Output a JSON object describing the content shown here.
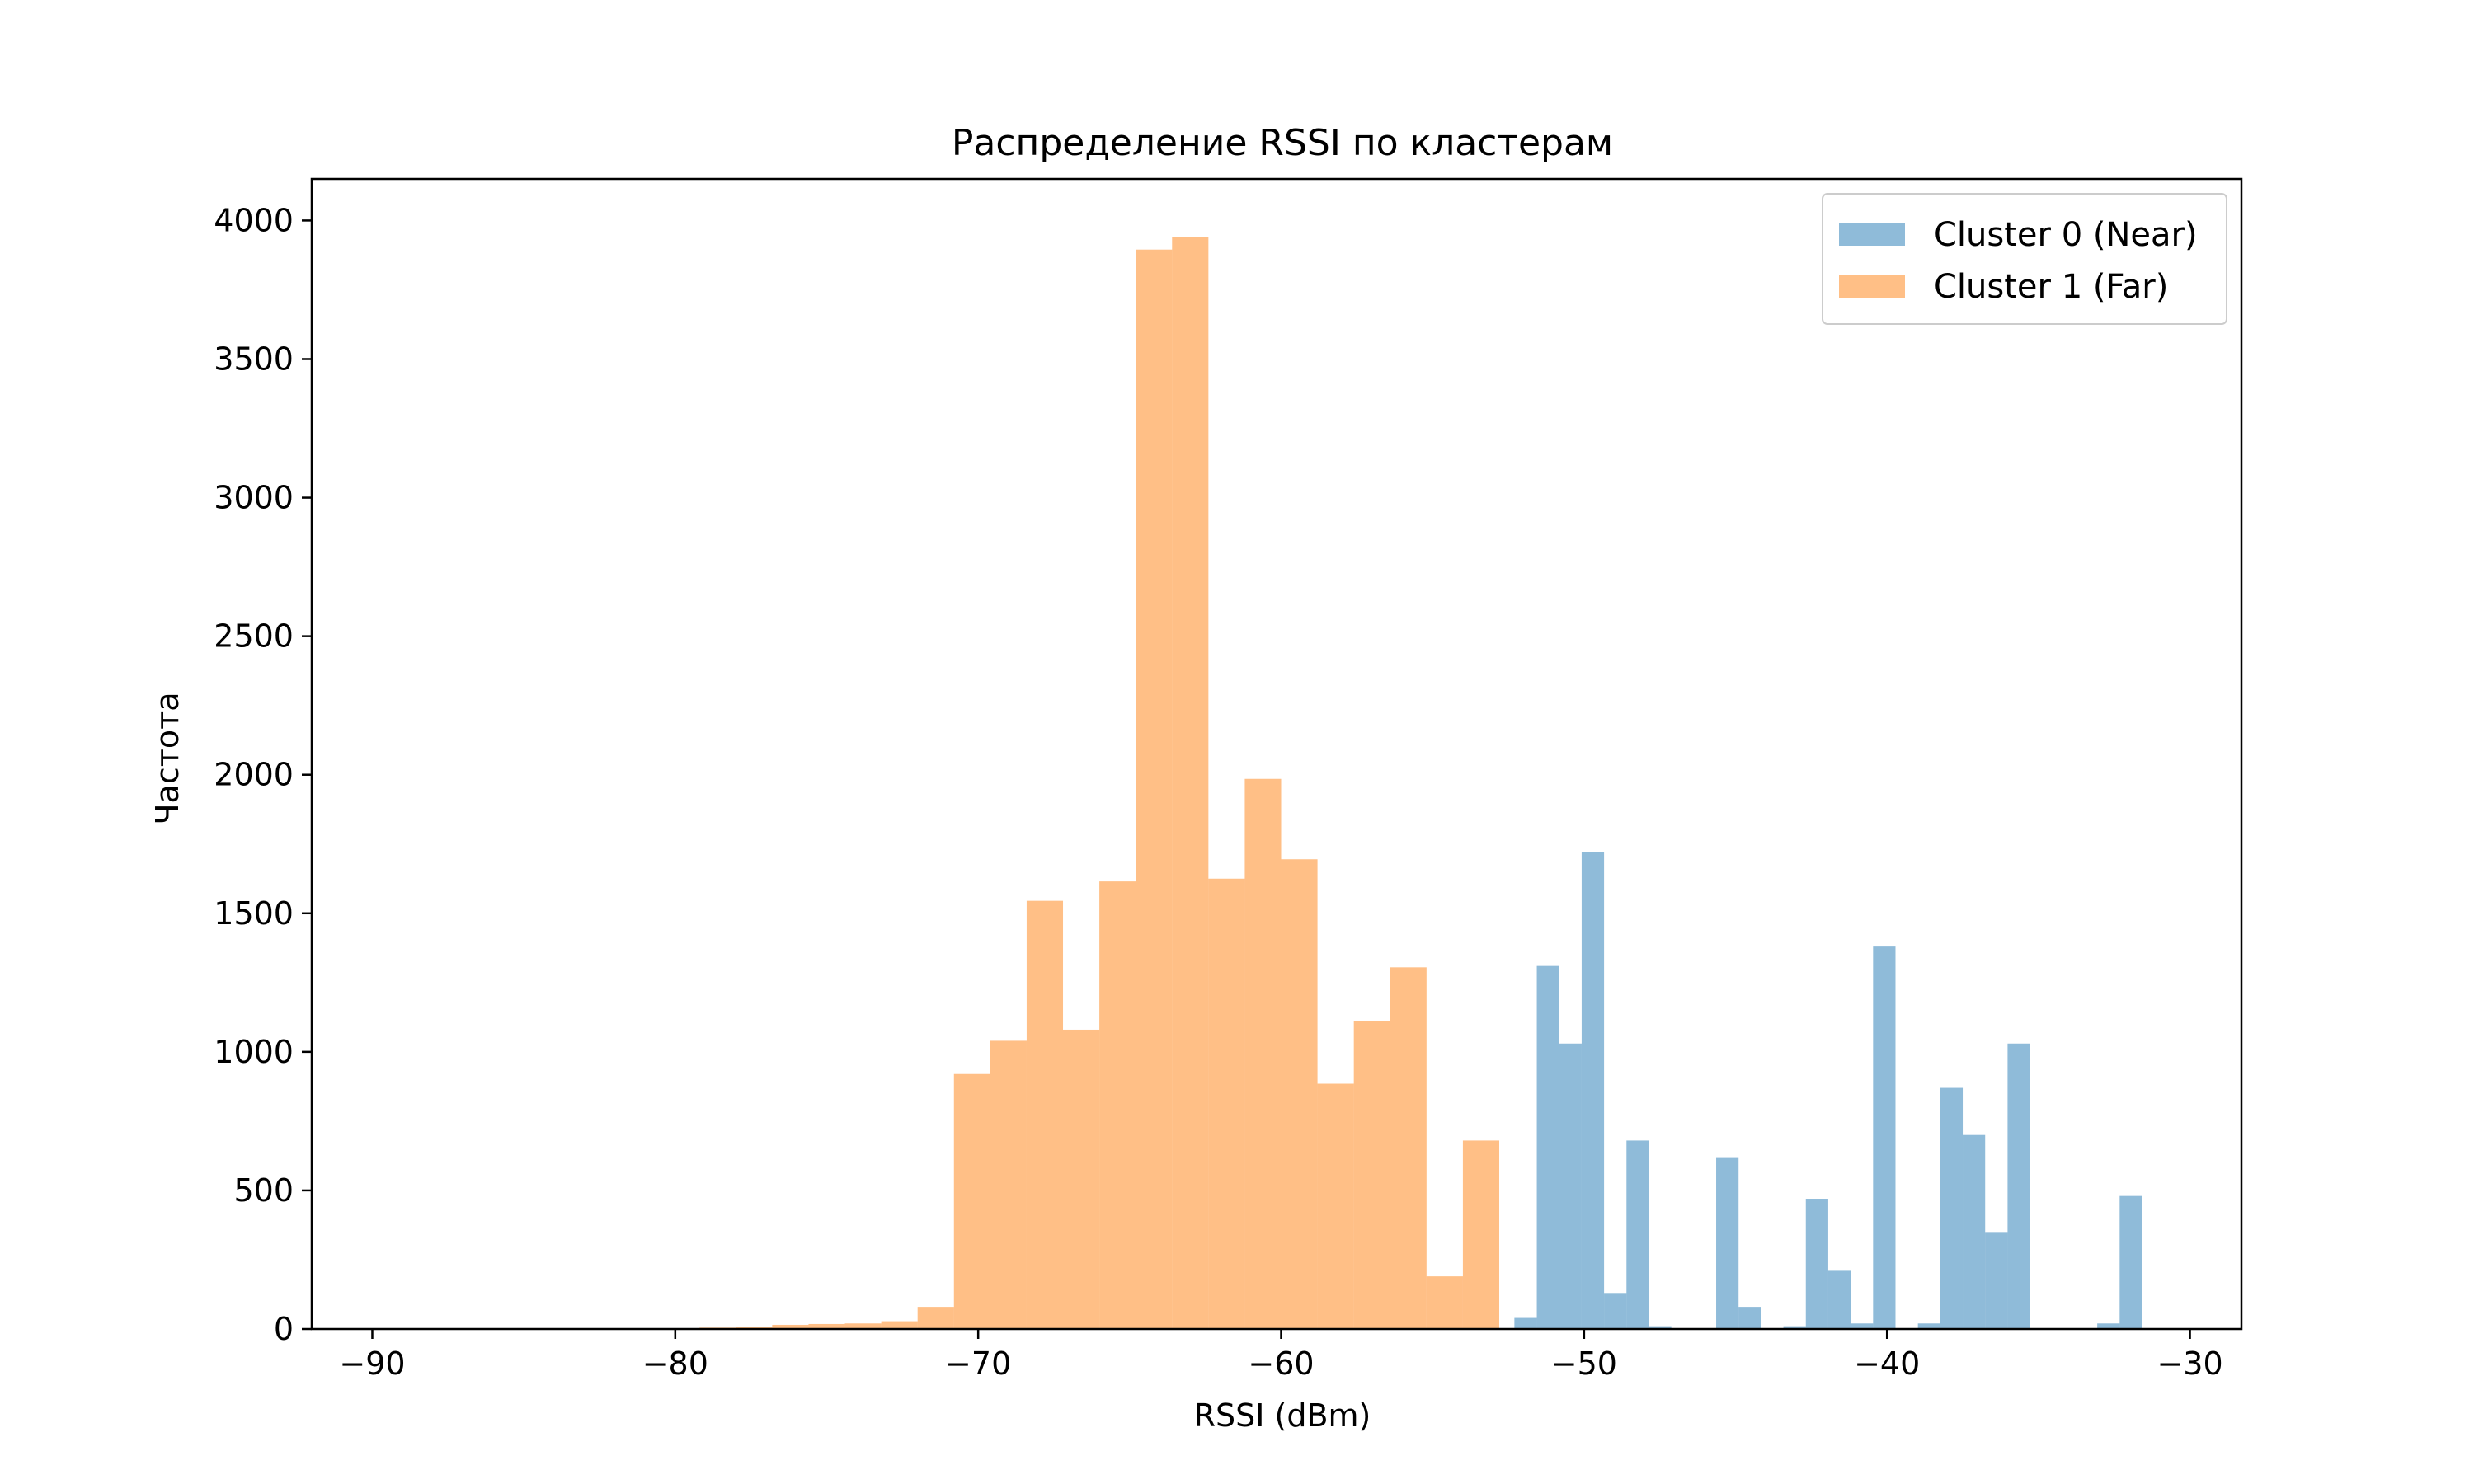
{
  "chart_data": {
    "type": "bar",
    "title": "Распределение RSSI по кластерам",
    "xlabel": "RSSI (dBm)",
    "ylabel": "Частота",
    "xlim": [
      -92,
      -28.3
    ],
    "ylim": [
      0,
      4150
    ],
    "xticks": [
      -90,
      -80,
      -70,
      -60,
      -50,
      -40,
      -30
    ],
    "xtick_labels": [
      "−90",
      "−80",
      "−70",
      "−60",
      "−50",
      "−40",
      "−30"
    ],
    "yticks": [
      0,
      500,
      1000,
      1500,
      2000,
      2500,
      3000,
      3500,
      4000
    ],
    "ytick_labels": [
      "0",
      "500",
      "1000",
      "1500",
      "2000",
      "2500",
      "3000",
      "3500",
      "4000"
    ],
    "grid": false,
    "legend_position": "top-right",
    "series": [
      {
        "name": "Cluster 0 (Near)",
        "color": "#1f77b4",
        "opacity": 0.5,
        "bin_width": 0.74,
        "bin_starts": [
          -52.3,
          -51.56,
          -50.82,
          -50.08,
          -49.34,
          -48.6,
          -47.86,
          -47.12,
          -46.38,
          -45.64,
          -44.9,
          -44.16,
          -43.42,
          -42.68,
          -41.94,
          -41.2,
          -40.46,
          -39.72,
          -38.98,
          -38.24,
          -37.5,
          -36.76,
          -36.02,
          -35.28,
          -34.54,
          -33.8,
          -33.06,
          -32.32,
          -31.58
        ],
        "values": [
          40,
          1310,
          1030,
          1720,
          130,
          680,
          10,
          0,
          0,
          620,
          80,
          0,
          10,
          470,
          210,
          20,
          1380,
          0,
          20,
          870,
          700,
          350,
          1030,
          0,
          0,
          0,
          20,
          480,
          0
        ]
      },
      {
        "name": "Cluster 1 (Far)",
        "color": "#ff7f0e",
        "opacity": 0.5,
        "bin_width": 1.2,
        "bin_starts": [
          -90.0,
          -88.8,
          -87.6,
          -86.4,
          -85.2,
          -84.0,
          -82.8,
          -81.6,
          -80.4,
          -79.2,
          -78.0,
          -76.8,
          -75.6,
          -74.4,
          -73.2,
          -72.0,
          -70.8,
          -69.6,
          -68.4,
          -67.2,
          -66.0,
          -64.8,
          -63.6,
          -62.4,
          -61.2,
          -60.0,
          -58.8,
          -57.6,
          -56.4,
          -55.2,
          -54.0
        ],
        "values": [
          0,
          0,
          0,
          0,
          3,
          0,
          0,
          0,
          2,
          5,
          8,
          15,
          18,
          20,
          28,
          80,
          920,
          1040,
          1545,
          1080,
          1615,
          3895,
          3940,
          1625,
          1985,
          1695,
          885,
          1110,
          1305,
          190,
          680
        ]
      }
    ]
  }
}
